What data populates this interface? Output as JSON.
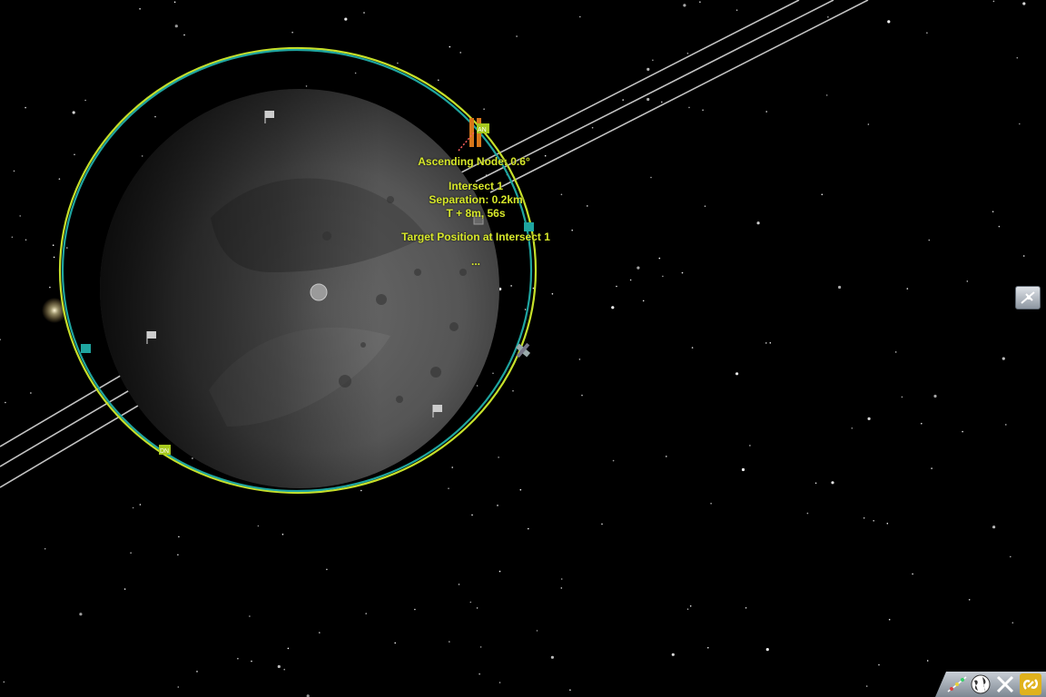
{
  "map_view": {
    "ascending_node": "Ascending Node: 0.6°",
    "intersect": {
      "title": "Intersect 1",
      "separation": "Separation: 0.2km",
      "time": "T + 8m, 56s"
    },
    "target_position": "Target Position at Intersect 1",
    "ellipsis": "...",
    "node_markers": {
      "ascending": "AN",
      "descending": "DN"
    }
  },
  "colors": {
    "label": "#d7e82a",
    "orbit_yellow": "#c6e02a",
    "orbit_teal": "#1fa5a0",
    "trajectory": "#e6e6e6"
  },
  "icons": {
    "side_button": "antenna-icon",
    "toolbar": [
      "maneuver-node-icon",
      "globe-icon",
      "close-icon",
      "link-icon"
    ]
  }
}
